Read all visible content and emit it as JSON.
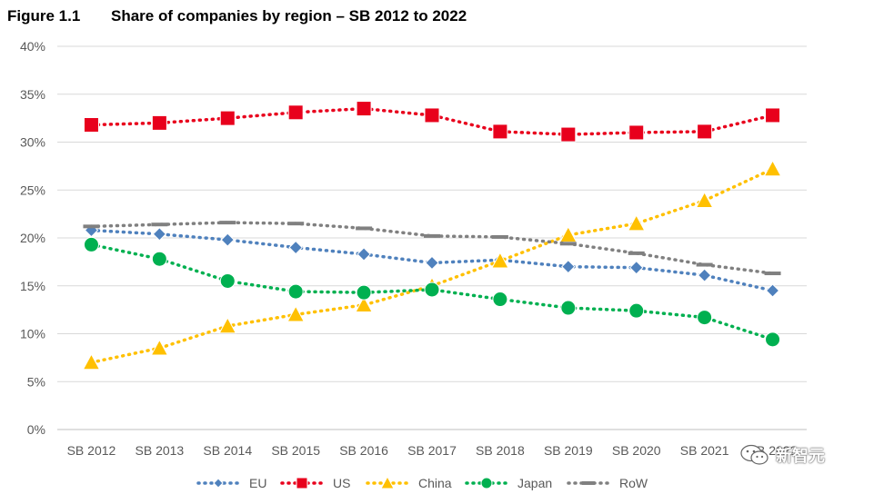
{
  "figure": {
    "number": "Figure 1.1",
    "title": "Share of companies by region – SB 2012 to 2022"
  },
  "chart_data": {
    "type": "line",
    "title": "Share of companies by region – SB 2012 to 2022",
    "categories": [
      "SB 2012",
      "SB 2013",
      "SB 2014",
      "SB 2015",
      "SB 2016",
      "SB 2017",
      "SB 2018",
      "SB 2019",
      "SB 2020",
      "SB 2021",
      "SB 2022"
    ],
    "y_ticks": [
      "0%",
      "5%",
      "10%",
      "15%",
      "20%",
      "25%",
      "30%",
      "35%",
      "40%"
    ],
    "ylim": [
      0,
      40
    ],
    "grid": true,
    "legend_position": "bottom",
    "series": [
      {
        "name": "EU",
        "color": "#4f81bd",
        "marker": "diamond",
        "line": "dotted",
        "values": [
          20.8,
          20.4,
          19.8,
          19.0,
          18.3,
          17.4,
          17.7,
          17.0,
          16.9,
          16.1,
          14.5
        ]
      },
      {
        "name": "US",
        "color": "#e8001c",
        "marker": "square",
        "line": "dotted",
        "values": [
          31.8,
          32.0,
          32.5,
          33.1,
          33.5,
          32.8,
          31.1,
          30.8,
          31.0,
          31.1,
          32.8
        ]
      },
      {
        "name": "China",
        "color": "#ffc000",
        "marker": "triangle",
        "line": "dotted",
        "values": [
          7.0,
          8.5,
          10.8,
          12.0,
          13.0,
          15.0,
          17.6,
          20.3,
          21.5,
          23.9,
          27.2
        ]
      },
      {
        "name": "Japan",
        "color": "#00b050",
        "marker": "circle",
        "line": "dotted",
        "values": [
          19.3,
          17.8,
          15.5,
          14.4,
          14.3,
          14.6,
          13.6,
          12.7,
          12.4,
          11.7,
          9.4
        ]
      },
      {
        "name": "RoW",
        "color": "#808080",
        "marker": "dash",
        "line": "dotted",
        "values": [
          21.2,
          21.4,
          21.6,
          21.5,
          21.0,
          20.2,
          20.1,
          19.4,
          18.4,
          17.2,
          16.3
        ]
      }
    ]
  },
  "watermark": {
    "text": "新智元",
    "icon": "wechat-icon"
  }
}
